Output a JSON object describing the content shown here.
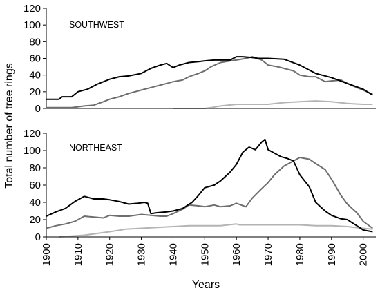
{
  "colors": {
    "series_1": "#000000",
    "series_2": "#6e6e6e",
    "series_3": "#b4b4b4",
    "axis": "#000000"
  },
  "xlabel": "Years",
  "ylabel": "Total number of tree rings",
  "chart_data": [
    {
      "type": "line",
      "title": "SOUTHWEST",
      "ylim": [
        0,
        120
      ],
      "yticks": [
        0,
        20,
        40,
        60,
        80,
        100,
        120
      ],
      "xlim": [
        1900,
        2004
      ],
      "series": [
        {
          "x": [
            1900,
            1904,
            1905,
            1908,
            1910,
            1913,
            1916,
            1920,
            1923,
            1926,
            1930,
            1933,
            1936,
            1938,
            1940,
            1942,
            1945,
            1948,
            1950,
            1953,
            1955,
            1958,
            1960,
            1962,
            1965,
            1967,
            1970,
            1975,
            1980,
            1985,
            1990,
            1995,
            2000,
            2003
          ],
          "values": [
            11,
            11,
            14,
            14,
            20,
            23,
            29,
            35,
            38,
            39,
            42,
            48,
            52,
            54,
            49,
            52,
            55,
            56,
            57,
            58,
            58,
            58,
            62,
            62,
            61,
            60,
            60,
            59,
            52,
            42,
            37,
            30,
            23,
            16
          ]
        },
        {
          "x": [
            1900,
            1905,
            1908,
            1910,
            1912,
            1915,
            1918,
            1920,
            1923,
            1926,
            1930,
            1933,
            1936,
            1938,
            1940,
            1943,
            1945,
            1948,
            1950,
            1952,
            1955,
            1958,
            1960,
            1963,
            1965,
            1968,
            1970,
            1973,
            1975,
            1978,
            1980,
            1983,
            1985,
            1988,
            1990,
            1993,
            1995,
            1998,
            2000,
            2003
          ],
          "values": [
            1,
            1,
            1,
            2,
            3,
            4,
            8,
            11,
            14,
            18,
            22,
            25,
            28,
            30,
            32,
            34,
            38,
            42,
            45,
            50,
            55,
            57,
            58,
            60,
            62,
            58,
            52,
            50,
            48,
            45,
            40,
            38,
            38,
            32,
            33,
            34,
            30,
            25,
            22,
            17
          ]
        },
        {
          "x": [
            1940,
            1950,
            1952,
            1955,
            1960,
            1965,
            1970,
            1975,
            1980,
            1985,
            1990,
            1995,
            2000,
            2003
          ],
          "values": [
            0,
            0,
            1,
            3,
            5,
            5,
            5,
            7,
            8,
            9,
            8,
            6,
            5,
            5
          ]
        }
      ]
    },
    {
      "type": "line",
      "title": "NORTHEAST",
      "ylim": [
        0,
        120
      ],
      "yticks": [
        0,
        20,
        40,
        60,
        80,
        100,
        120
      ],
      "xlim": [
        1900,
        2004
      ],
      "series": [
        {
          "x": [
            1900,
            1903,
            1906,
            1909,
            1912,
            1915,
            1918,
            1920,
            1923,
            1926,
            1929,
            1931,
            1932,
            1933,
            1935,
            1938,
            1940,
            1943,
            1946,
            1948,
            1950,
            1953,
            1955,
            1958,
            1960,
            1962,
            1964,
            1966,
            1968,
            1969,
            1970,
            1972,
            1974,
            1976,
            1978,
            1980,
            1983,
            1985,
            1988,
            1990,
            1993,
            1995,
            1998,
            2000,
            2003
          ],
          "values": [
            24,
            29,
            33,
            41,
            47,
            44,
            44,
            43,
            41,
            38,
            39,
            40,
            39,
            27,
            28,
            29,
            30,
            33,
            40,
            48,
            57,
            60,
            65,
            75,
            84,
            98,
            104,
            101,
            110,
            113,
            101,
            97,
            93,
            91,
            88,
            72,
            58,
            40,
            30,
            25,
            21,
            20,
            13,
            8,
            6
          ]
        },
        {
          "x": [
            1900,
            1903,
            1906,
            1909,
            1912,
            1915,
            1918,
            1920,
            1923,
            1926,
            1930,
            1933,
            1936,
            1938,
            1940,
            1943,
            1945,
            1948,
            1950,
            1953,
            1955,
            1958,
            1960,
            1963,
            1965,
            1968,
            1970,
            1972,
            1975,
            1978,
            1980,
            1983,
            1985,
            1988,
            1990,
            1993,
            1995,
            1998,
            2000,
            2003
          ],
          "values": [
            10,
            13,
            15,
            18,
            24,
            23,
            22,
            25,
            24,
            24,
            26,
            25,
            24,
            24,
            27,
            32,
            37,
            36,
            35,
            37,
            35,
            36,
            39,
            35,
            45,
            56,
            63,
            72,
            82,
            88,
            92,
            90,
            85,
            78,
            67,
            48,
            38,
            28,
            18,
            10
          ]
        },
        {
          "x": [
            1904,
            1908,
            1912,
            1916,
            1920,
            1925,
            1930,
            1935,
            1940,
            1945,
            1950,
            1955,
            1960,
            1961,
            1965,
            1970,
            1975,
            1980,
            1985,
            1990,
            1995,
            2000,
            2003
          ],
          "values": [
            0,
            1,
            2,
            4,
            6,
            9,
            10,
            11,
            12,
            13,
            13,
            13,
            15,
            14,
            14,
            14,
            14,
            14,
            13,
            13,
            12,
            10,
            9
          ]
        }
      ]
    }
  ]
}
